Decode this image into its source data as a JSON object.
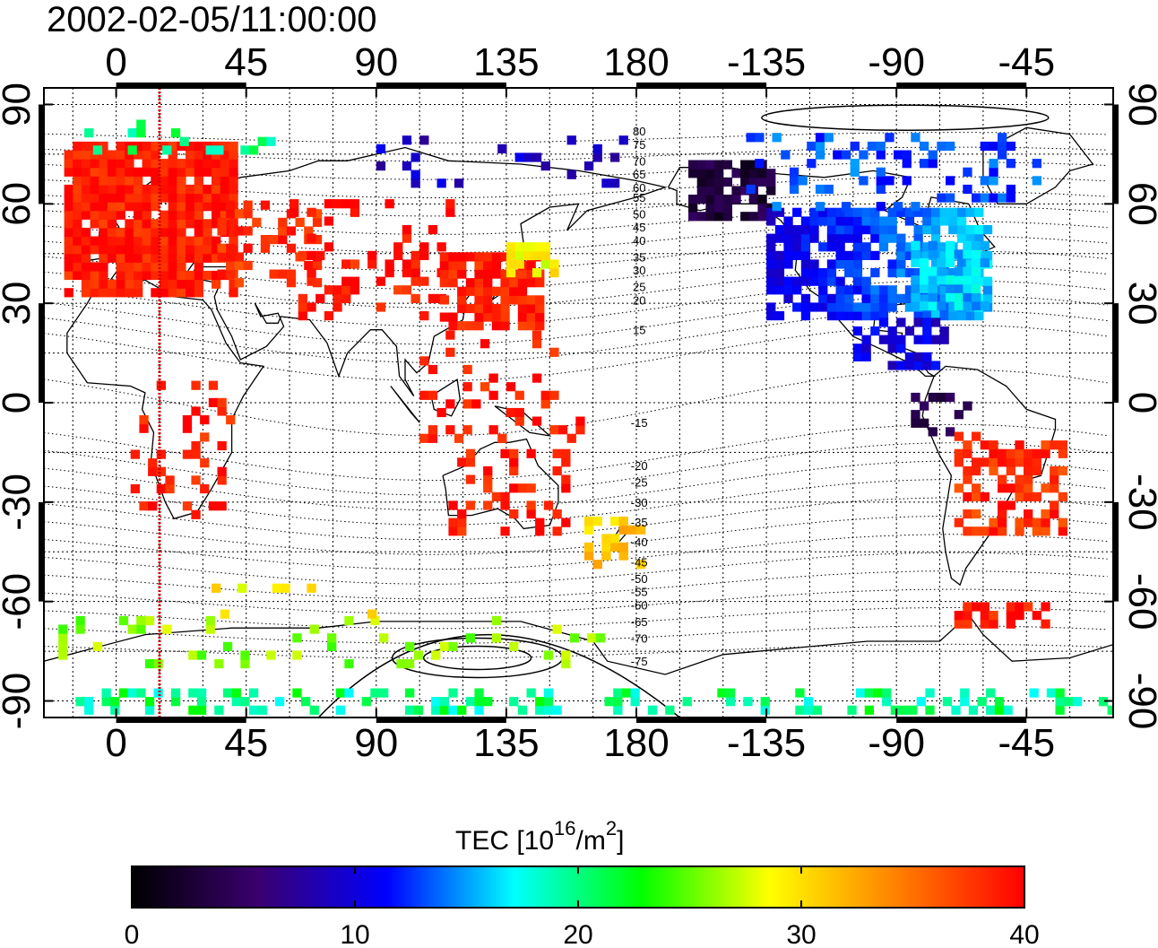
{
  "title": "2002-02-05/11:00:00",
  "colorbar": {
    "title_prefix": "TEC  [10",
    "title_sup1": "16",
    "title_mid": "/m",
    "title_sup2": "2",
    "title_suffix": "]",
    "min": 0,
    "max": 40,
    "ticks": [
      "0",
      "10",
      "20",
      "30",
      "40"
    ],
    "colormap": [
      "#000000",
      "#3a0070",
      "#0000ff",
      "#00ffff",
      "#00ff00",
      "#ffff00",
      "#ff8000",
      "#ff0000"
    ]
  },
  "axes": {
    "lon_min": -25,
    "lon_max": 345,
    "lat_min": -95,
    "lat_max": 95,
    "lon_ticks": [
      0,
      45,
      90,
      135,
      180,
      225,
      270,
      315
    ],
    "lon_tick_labels": [
      "0",
      "45",
      "90",
      "135",
      "180",
      "-135",
      "-90",
      "-45"
    ],
    "lat_ticks": [
      90,
      60,
      30,
      0,
      -30,
      -60,
      -90
    ],
    "lat_tick_labels": [
      "90",
      "60",
      "30",
      "0",
      "-30",
      "-60",
      "-90"
    ],
    "grid_lon": [
      -15,
      0,
      15,
      30,
      45,
      60,
      75,
      90,
      105,
      120,
      135,
      150,
      165,
      180,
      195,
      210,
      225,
      240,
      255,
      270,
      285,
      300,
      315,
      330
    ],
    "grid_lat": [
      -90,
      -75,
      -60,
      -45,
      -30,
      -15,
      0,
      15,
      30,
      45,
      60,
      75,
      90
    ]
  },
  "terminator_lon": 15,
  "magnetic_latitude_labels": [
    "80",
    "75",
    "70",
    "65",
    "60",
    "55",
    "50",
    "45",
    "40",
    "35",
    "30",
    "25",
    "20",
    "15",
    "-15",
    "-20",
    "-25",
    "-30",
    "-35",
    "-40",
    "-45",
    "-50",
    "-55",
    "-60",
    "-65",
    "-70",
    "-75"
  ],
  "magnetic_latitude_label_lats": [
    82,
    78,
    73,
    69,
    65,
    62,
    57,
    53,
    49,
    44,
    40,
    35,
    31,
    22,
    -6,
    -19,
    -24,
    -30,
    -36,
    -42,
    -48,
    -53,
    -57,
    -61,
    -66,
    -71,
    -78
  ],
  "tec_regions": [
    {
      "name": "europe",
      "lon": [
        -18,
        40
      ],
      "lat": [
        32,
        78
      ],
      "tec": 39,
      "density": 0.92
    },
    {
      "name": "europe-east",
      "lon": [
        35,
        70
      ],
      "lat": [
        35,
        60
      ],
      "tec": 38,
      "density": 0.35
    },
    {
      "name": "central-asia",
      "lon": [
        60,
        115
      ],
      "lat": [
        25,
        60
      ],
      "tec": 39,
      "density": 0.25
    },
    {
      "name": "china-japan",
      "lon": [
        112,
        145
      ],
      "lat": [
        22,
        45
      ],
      "tec": 39,
      "density": 0.8
    },
    {
      "name": "japan-gradient",
      "lon": [
        135,
        150
      ],
      "lat": [
        38,
        48
      ],
      "tec": 29,
      "density": 0.7
    },
    {
      "name": "southeast-asia",
      "lon": [
        105,
        160
      ],
      "lat": [
        -12,
        20
      ],
      "tec": 39,
      "density": 0.18
    },
    {
      "name": "africa",
      "lon": [
        5,
        40
      ],
      "lat": [
        -35,
        5
      ],
      "tec": 39,
      "density": 0.25
    },
    {
      "name": "australia",
      "lon": [
        115,
        155
      ],
      "lat": [
        -40,
        -15
      ],
      "tec": 39,
      "density": 0.28
    },
    {
      "name": "new-zealand",
      "lon": [
        162,
        180
      ],
      "lat": [
        -50,
        -35
      ],
      "tec": 31,
      "density": 0.6
    },
    {
      "name": "arctic-north-europe",
      "lon": [
        -20,
        60
      ],
      "lat": [
        75,
        85
      ],
      "tec": 20,
      "density": 0.15
    },
    {
      "name": "siberia-north",
      "lon": [
        90,
        180
      ],
      "lat": [
        65,
        78
      ],
      "tec": 9,
      "density": 0.15
    },
    {
      "name": "alaska",
      "lon": [
        198,
        225
      ],
      "lat": [
        55,
        72
      ],
      "tec": 3,
      "density": 0.75
    },
    {
      "name": "north-america",
      "lon": [
        225,
        300
      ],
      "lat": [
        25,
        58
      ],
      "tec": 10,
      "density": 0.8
    },
    {
      "name": "us-east",
      "lon": [
        275,
        300
      ],
      "lat": [
        28,
        48
      ],
      "tec": 16,
      "density": 0.7
    },
    {
      "name": "canada-north",
      "lon": [
        215,
        320
      ],
      "lat": [
        58,
        80
      ],
      "tec": 13,
      "density": 0.25
    },
    {
      "name": "central-america",
      "lon": [
        255,
        285
      ],
      "lat": [
        10,
        25
      ],
      "tec": 10,
      "density": 0.45
    },
    {
      "name": "south-america-north",
      "lon": [
        275,
        295
      ],
      "lat": [
        -10,
        2
      ],
      "tec": 4,
      "density": 0.3
    },
    {
      "name": "south-america",
      "lon": [
        290,
        328
      ],
      "lat": [
        -40,
        -10
      ],
      "tec": 38,
      "density": 0.55
    },
    {
      "name": "antarctic-peninsula",
      "lon": [
        290,
        320
      ],
      "lat": [
        -68,
        -62
      ],
      "tec": 39,
      "density": 0.7
    },
    {
      "name": "antarctica-rim",
      "lon": [
        -20,
        170
      ],
      "lat": [
        -80,
        -65
      ],
      "tec": 26,
      "density": 0.15
    },
    {
      "name": "antarctica-south",
      "lon": [
        -20,
        345
      ],
      "lat": [
        -94,
        -87
      ],
      "tec": 20,
      "density": 0.35
    },
    {
      "name": "southern-ocean",
      "lon": [
        30,
        90
      ],
      "lat": [
        -65,
        -55
      ],
      "tec": 29,
      "density": 0.12
    }
  ]
}
